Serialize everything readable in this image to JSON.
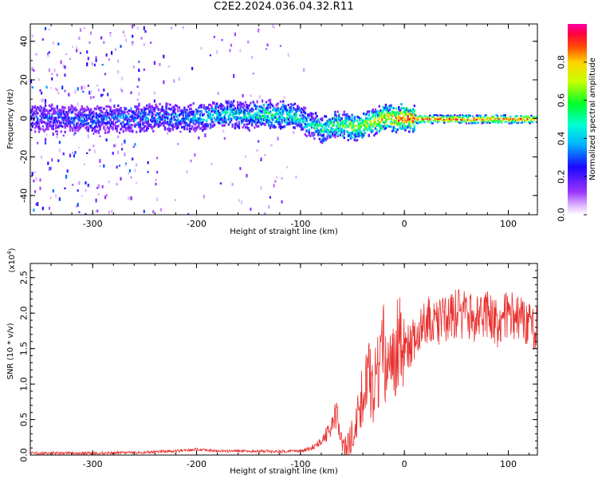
{
  "chart_data": [
    {
      "type": "heatmap",
      "title": "C2E2.2024.036.04.32.R11",
      "xlabel": "Height of straight line (km)",
      "ylabel": "Frequency (Hz)",
      "xlim": [
        -360,
        128
      ],
      "ylim": [
        -50,
        49
      ],
      "xticks": [
        -300,
        -200,
        -100,
        0,
        100
      ],
      "xtick_labels": [
        "-300",
        "-200",
        "-100",
        "0",
        "100"
      ],
      "yticks": [
        -40,
        -20,
        0,
        20,
        40
      ],
      "ytick_labels": [
        "-40",
        "-20",
        "0",
        "20",
        "40"
      ],
      "colorbar": {
        "label": "Normalized spectral amplitude",
        "range": [
          0,
          1
        ],
        "ticks": [
          0.0,
          0.2,
          0.4,
          0.6,
          0.8
        ],
        "tick_labels": [
          "0.0",
          "0.2",
          "0.4",
          "0.6",
          "0.8"
        ]
      },
      "trace": {
        "x": [
          -360,
          -300,
          -250,
          -200,
          -170,
          -150,
          -130,
          -110,
          -100,
          -95,
          -85,
          -78,
          -70,
          -60,
          -50,
          -40,
          -30,
          -20,
          -10,
          0,
          10,
          50,
          100,
          128
        ],
        "y": [
          1,
          0,
          1,
          1,
          3,
          2,
          3,
          2,
          1,
          -2,
          -4,
          -5,
          -3,
          -3,
          -4,
          -3,
          -1,
          1,
          0,
          1,
          0,
          0,
          0,
          0
        ],
        "amplitude": [
          0.25,
          0.3,
          0.3,
          0.4,
          0.5,
          0.45,
          0.55,
          0.5,
          0.5,
          0.45,
          0.5,
          0.55,
          0.6,
          0.6,
          0.65,
          0.7,
          0.75,
          0.8,
          0.85,
          0.9,
          0.9,
          0.9,
          0.9,
          0.9
        ]
      }
    },
    {
      "type": "line",
      "title": "",
      "xlabel": "Height of straight line (km)",
      "ylabel": "SNR (10 * v/v)",
      "y_multiplier": "(x10",
      "y_multiplier_exponent": "4",
      "y_multiplier_close": ")",
      "xlim": [
        -360,
        128
      ],
      "ylim": [
        0,
        2.7
      ],
      "xticks": [
        -300,
        -200,
        -100,
        0,
        100
      ],
      "xtick_labels": [
        "-300",
        "-200",
        "-100",
        "0",
        "100"
      ],
      "yticks": [
        0.0,
        0.5,
        1.0,
        1.5,
        2.0,
        2.5
      ],
      "ytick_labels": [
        "0.0",
        "0.5",
        "1.0",
        "1.5",
        "2.0",
        "2.5"
      ],
      "color": "#e8312e",
      "series": [
        {
          "name": "SNR",
          "x": [
            -360,
            -300,
            -250,
            -220,
            -200,
            -180,
            -150,
            -120,
            -100,
            -90,
            -80,
            -70,
            -65,
            -60,
            -55,
            -50,
            -45,
            -40,
            -35,
            -30,
            -25,
            -20,
            -15,
            -10,
            -5,
            0,
            10,
            20,
            30,
            40,
            50,
            60,
            70,
            80,
            90,
            100,
            110,
            120,
            128
          ],
          "y": [
            0.02,
            0.02,
            0.03,
            0.05,
            0.07,
            0.05,
            0.05,
            0.04,
            0.05,
            0.1,
            0.18,
            0.4,
            0.6,
            0.2,
            0.1,
            0.3,
            0.5,
            0.9,
            1.1,
            0.9,
            1.2,
            1.5,
            1.1,
            1.4,
            1.6,
            1.4,
            1.7,
            1.9,
            1.85,
            1.9,
            2.0,
            1.95,
            1.9,
            2.0,
            1.85,
            2.0,
            1.9,
            1.85,
            1.8
          ]
        }
      ]
    }
  ]
}
